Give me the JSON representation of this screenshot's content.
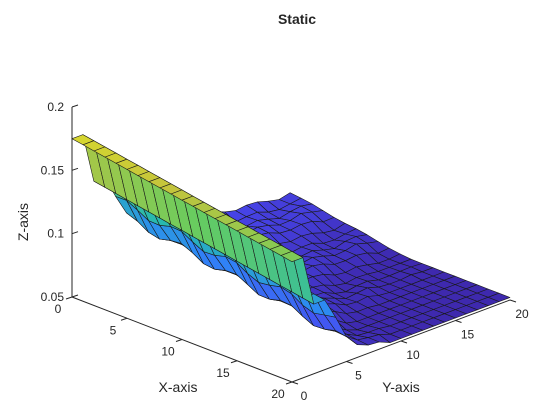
{
  "chart_data": {
    "type": "surface",
    "title": "Static",
    "xlabel": "X-axis",
    "ylabel": "Y-axis",
    "zlabel": "Z-axis",
    "xlim": [
      0,
      20
    ],
    "ylim": [
      0,
      20
    ],
    "zlim": [
      0.05,
      0.2
    ],
    "x_ticks": [
      "0",
      "5",
      "10",
      "15",
      "20"
    ],
    "y_ticks": [
      "0",
      "5",
      "10",
      "15",
      "20"
    ],
    "z_ticks": [
      "0.05",
      "0.1",
      "0.15",
      "0.2"
    ],
    "grid": false,
    "colormap": "parula",
    "colors": {
      "low": "#3d26a8",
      "mid": "#2f86f7",
      "high_mid": "#55c270",
      "high": "#f9fb15"
    },
    "x": [
      0,
      1,
      2,
      3,
      4,
      5,
      6,
      7,
      8,
      9,
      10,
      11,
      12,
      13,
      14,
      15,
      16,
      17,
      18,
      19,
      20
    ],
    "y_profile": [
      0,
      1,
      2,
      3,
      4,
      5,
      6,
      7,
      8,
      9,
      10,
      11,
      12,
      13,
      14,
      15,
      16,
      17,
      18,
      19,
      20
    ],
    "z_profile": [
      0.175,
      0.175,
      0.135,
      0.135,
      0.115,
      0.097,
      0.09,
      0.086,
      0.083,
      0.08,
      0.078,
      0.076,
      0.074,
      0.073,
      0.072,
      0.071,
      0.07,
      0.069,
      0.069,
      0.068,
      0.068
    ],
    "z_x_slope": 0.0015
  }
}
